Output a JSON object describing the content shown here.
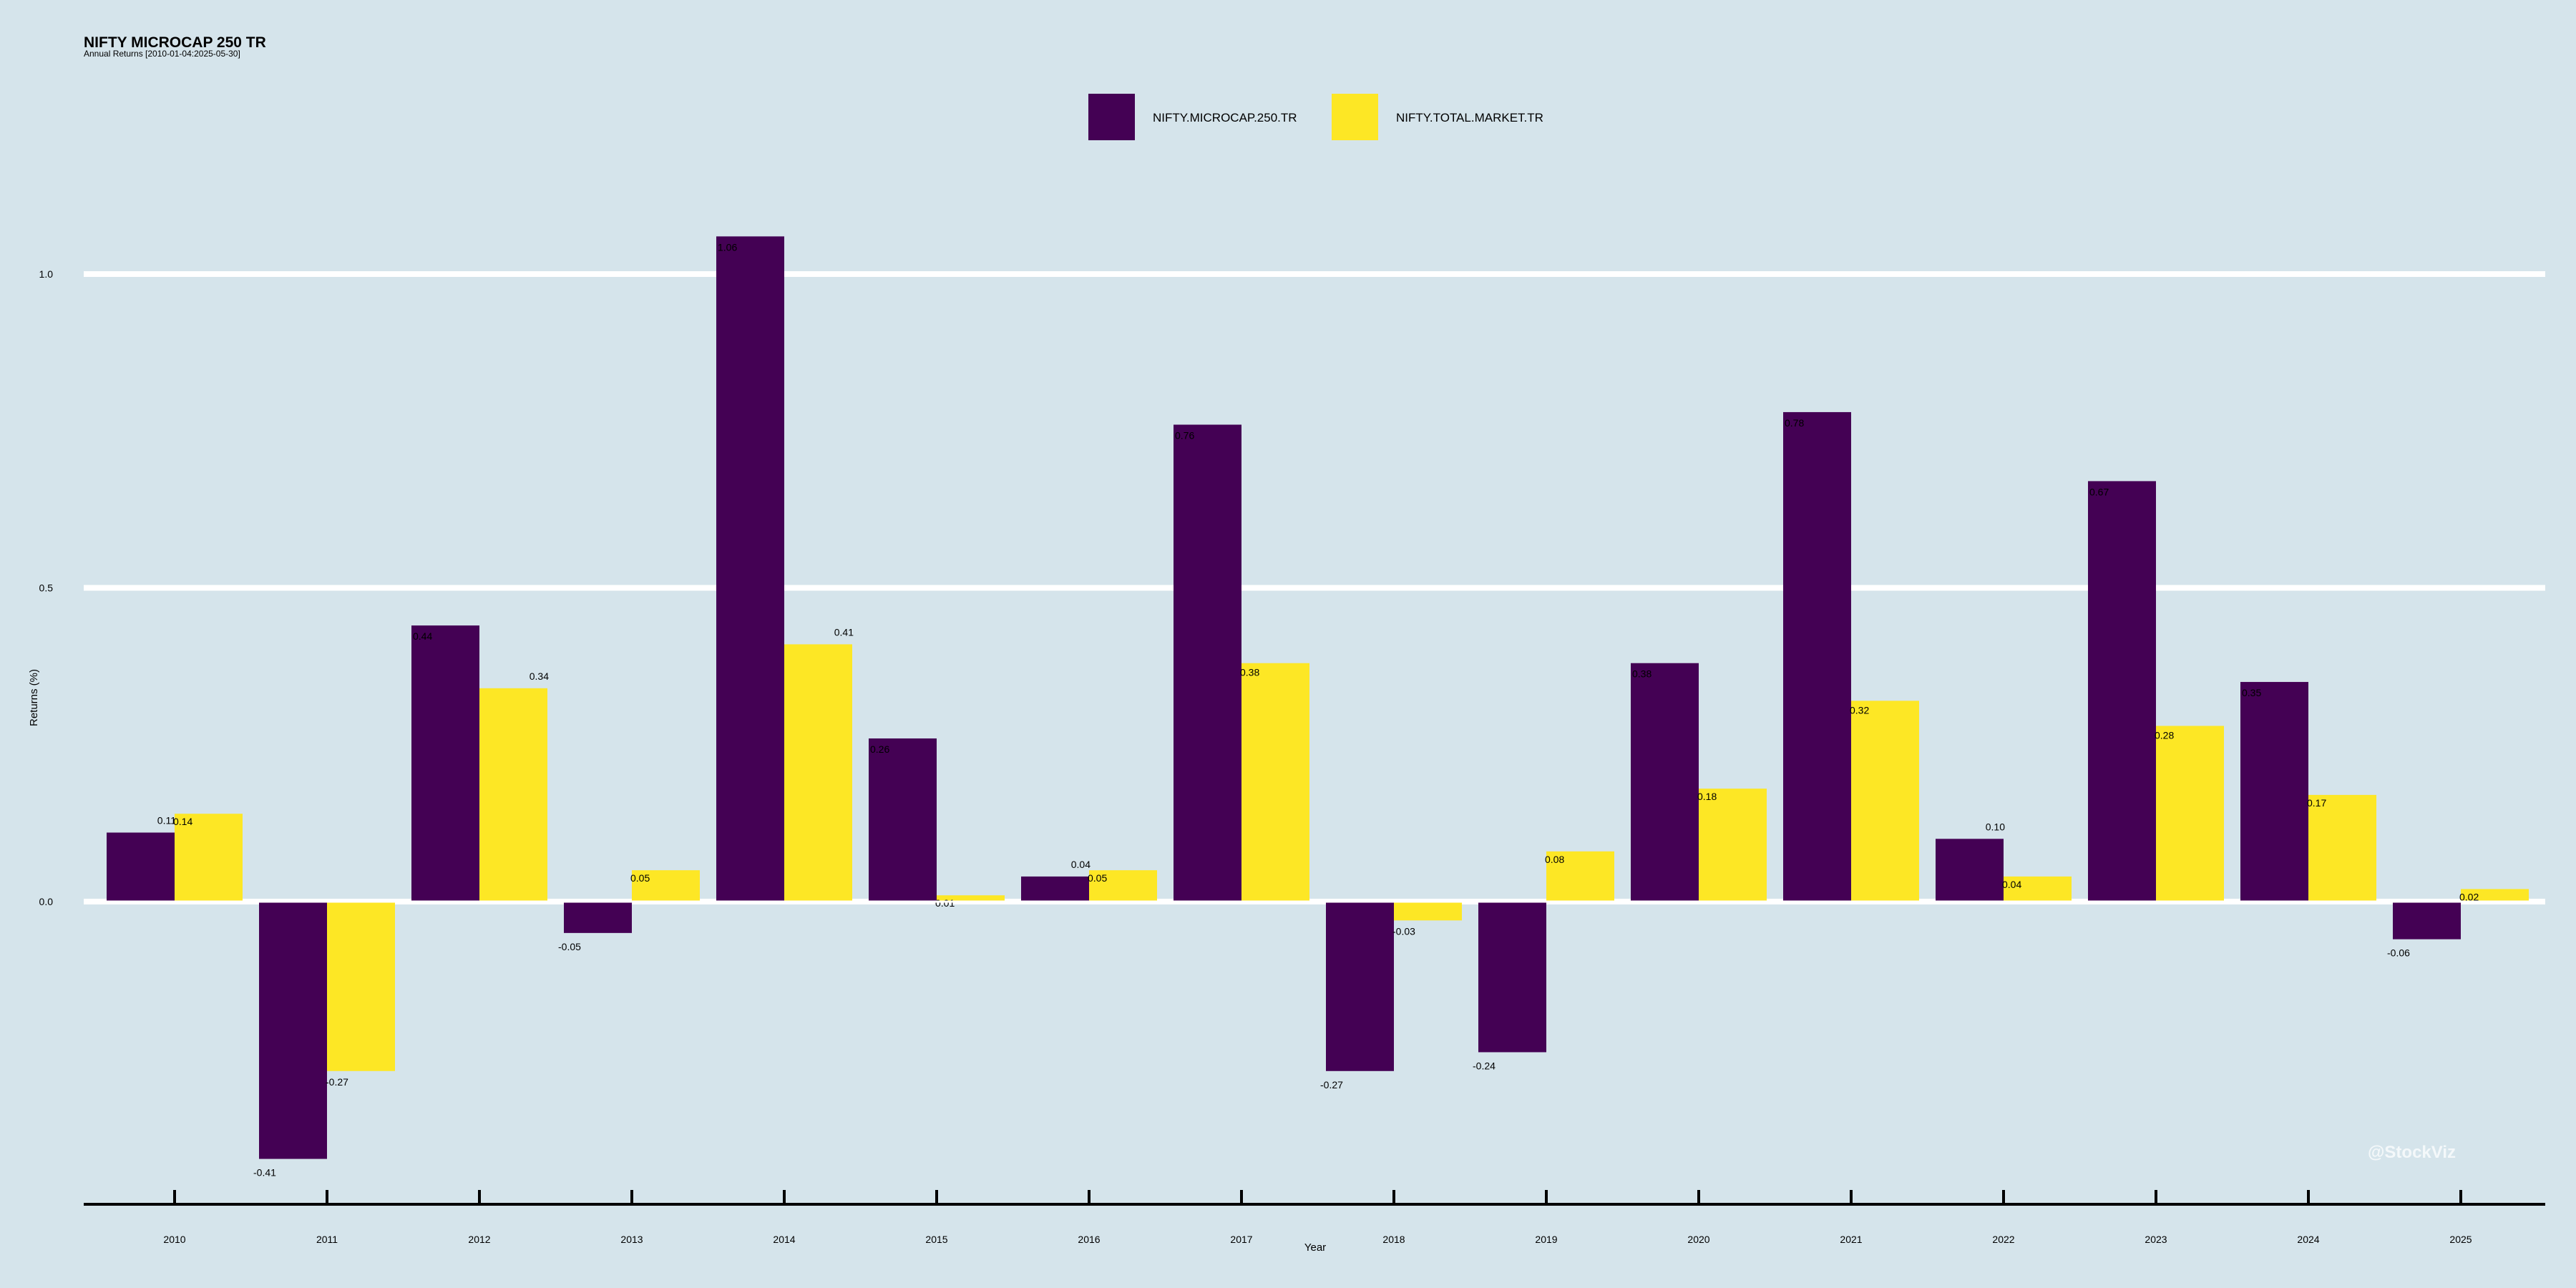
{
  "chart_data": {
    "type": "bar",
    "title": "NIFTY MICROCAP 250 TR",
    "subtitle": "Annual Returns [2010-01-04:2025-05-30]",
    "xlabel": "Year",
    "ylabel": "Returns (%)",
    "categories": [
      "2010",
      "2011",
      "2012",
      "2013",
      "2014",
      "2015",
      "2016",
      "2017",
      "2018",
      "2019",
      "2020",
      "2021",
      "2022",
      "2023",
      "2024",
      "2025"
    ],
    "series": [
      {
        "name": "NIFTY.MICROCAP.250.TR",
        "color": "#440154",
        "values": [
          0.11,
          -0.41,
          0.44,
          -0.05,
          1.06,
          0.26,
          0.04,
          0.76,
          -0.27,
          -0.24,
          0.38,
          0.78,
          0.1,
          0.67,
          0.35,
          -0.06
        ],
        "labels": [
          "0.11",
          "-0.41",
          "0.44",
          "-0.05",
          "1.06",
          "0.26",
          "0.04",
          "0.76",
          "-0.27",
          "-0.24",
          "0.38",
          "0.78",
          "0.10",
          "0.67",
          "0.35",
          "-0.06"
        ]
      },
      {
        "name": "NIFTY.TOTAL.MARKET.TR",
        "color": "#fde725",
        "values": [
          0.14,
          -0.27,
          0.34,
          0.05,
          0.41,
          0.01,
          0.05,
          0.38,
          -0.03,
          0.08,
          0.18,
          0.32,
          0.04,
          0.28,
          0.17,
          0.02
        ],
        "labels": [
          "0.14",
          "-0.27",
          "0.34",
          "0.05",
          "0.41",
          "0.01",
          "0.05",
          "0.38",
          "-0.03",
          "0.08",
          "0.18",
          "0.32",
          "0.04",
          "0.28",
          "0.17",
          "0.02"
        ]
      }
    ],
    "yticks": [
      0.0,
      0.5,
      1.0
    ],
    "ytick_labels": [
      "0.0",
      "0.5",
      "1.0"
    ],
    "ylim": [
      -0.48,
      1.18
    ],
    "grid": "horizontal",
    "legend_position": "top-center",
    "background": "#d5e4eb",
    "watermark": "@StockViz"
  }
}
